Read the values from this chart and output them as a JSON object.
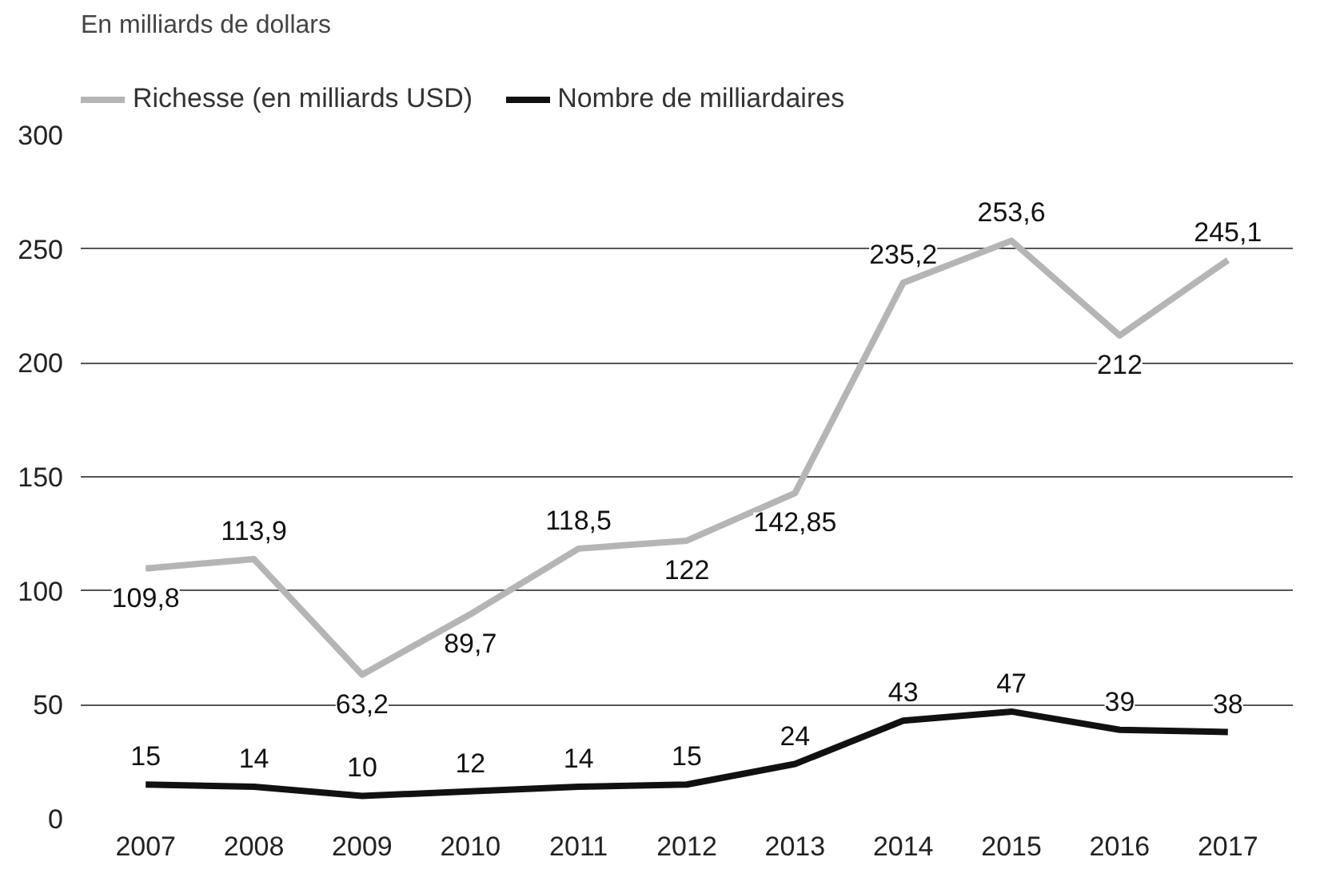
{
  "chart_data": {
    "type": "line",
    "title": "En milliards de dollars",
    "categories": [
      "2007",
      "2008",
      "2009",
      "2010",
      "2011",
      "2012",
      "2013",
      "2014",
      "2015",
      "2016",
      "2017"
    ],
    "series": [
      {
        "name": "Richesse (en milliards USD)",
        "color": "#b5b5b5",
        "values": [
          109.8,
          113.9,
          63.2,
          89.7,
          118.5,
          122,
          142.85,
          235.2,
          253.6,
          212,
          245.1
        ],
        "value_labels": [
          "109,8",
          "113,9",
          "63,2",
          "89,7",
          "118,5",
          "122",
          "142,85",
          "235,2",
          "253,6",
          "212",
          "245,1"
        ]
      },
      {
        "name": "Nombre de milliardaires",
        "color": "#111111",
        "values": [
          15,
          14,
          10,
          12,
          14,
          15,
          24,
          43,
          47,
          39,
          38
        ],
        "value_labels": [
          "15",
          "14",
          "10",
          "12",
          "14",
          "15",
          "24",
          "43",
          "47",
          "39",
          "38"
        ]
      }
    ],
    "ylim": [
      0,
      300
    ],
    "yticks": [
      0,
      50,
      100,
      150,
      200,
      250,
      300
    ],
    "grid": "y",
    "legend": "top left",
    "marker": "none",
    "line_style": "solid"
  }
}
